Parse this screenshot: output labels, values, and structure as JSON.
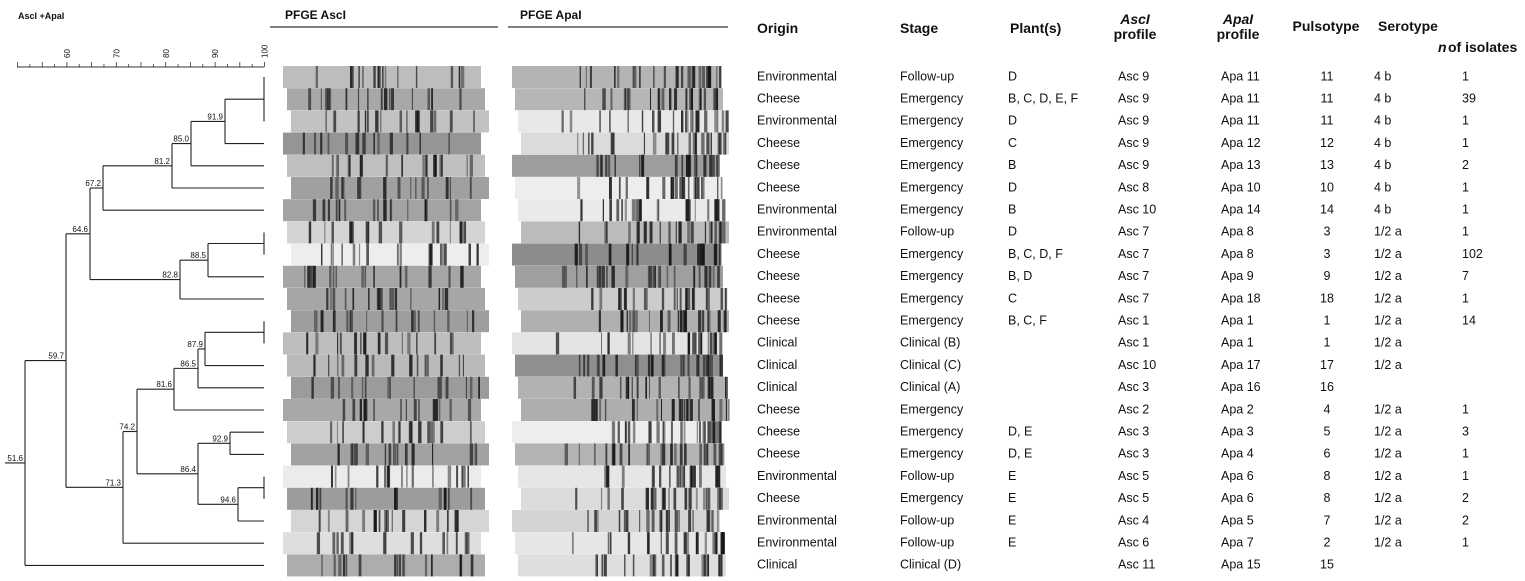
{
  "figure": {
    "title": "AscI +ApaI",
    "gel_headers": [
      "PFGE AscI",
      "PFGE ApaI"
    ],
    "scale": [
      "60",
      "70",
      "80",
      "90",
      "100"
    ],
    "nodes": [
      "91.9",
      "85.0",
      "81.2",
      "67.2",
      "64.6",
      "88.5",
      "82.8",
      "59.7",
      "87.9",
      "86.5",
      "81.6",
      "92.9",
      "94.6",
      "86.4",
      "74.2",
      "71.3",
      "51.6"
    ]
  },
  "table": {
    "headers": {
      "origin": "Origin",
      "stage": "Stage",
      "plants": "Plant(s)",
      "asc": [
        "AscI",
        "profile"
      ],
      "apa": [
        "ApaI",
        "profile"
      ],
      "pulsotype": "Pulsotype",
      "serotype": "Serotype",
      "isolates": [
        "n",
        "of isolates"
      ]
    },
    "rows": [
      [
        "Environmental",
        "Follow-up",
        "D",
        "Asc 9",
        "Apa 11",
        "11",
        "4 b",
        "1"
      ],
      [
        "Cheese",
        "Emergency",
        "B, C, D, E, F",
        "Asc 9",
        "Apa 11",
        "11",
        "4 b",
        "39"
      ],
      [
        "Environmental",
        "Emergency",
        "D",
        "Asc 9",
        "Apa 11",
        "11",
        "4 b",
        "1"
      ],
      [
        "Cheese",
        "Emergency",
        "C",
        "Asc 9",
        "Apa 12",
        "12",
        "4 b",
        "1"
      ],
      [
        "Cheese",
        "Emergency",
        "B",
        "Asc 9",
        "Apa 13",
        "13",
        "4 b",
        "2"
      ],
      [
        "Cheese",
        "Emergency",
        "D",
        "Asc 8",
        "Apa 10",
        "10",
        "4 b",
        "1"
      ],
      [
        "Environmental",
        "Emergency",
        "B",
        "Asc 10",
        "Apa 14",
        "14",
        "4 b",
        "1"
      ],
      [
        "Environmental",
        "Follow-up",
        "D",
        "Asc 7",
        "Apa 8",
        "3",
        "1/2 a",
        "1"
      ],
      [
        "Cheese",
        "Emergency",
        "B, C,  D,  F",
        "Asc 7",
        "Apa 8",
        "3",
        "1/2 a",
        "102"
      ],
      [
        "Cheese",
        "Emergency",
        "B, D",
        "Asc 7",
        "Apa 9",
        "9",
        "1/2 a",
        "7"
      ],
      [
        "Cheese",
        "Emergency",
        "C",
        "Asc 7",
        "Apa 18",
        "18",
        "1/2 a",
        "1"
      ],
      [
        "Cheese",
        "Emergency",
        "B, C, F",
        "Asc 1",
        "Apa 1",
        "1",
        "1/2 a",
        "14"
      ],
      [
        "Clinical",
        "Clinical (B)",
        null,
        "Asc 1",
        "Apa 1",
        "1",
        "1/2 a",
        null
      ],
      [
        "Clinical",
        "Clinical (C)",
        null,
        "Asc 10",
        "Apa 17",
        "17",
        "1/2 a",
        null
      ],
      [
        "Clinical",
        "Clinical (A)",
        null,
        "Asc 3",
        "Apa 16",
        "16",
        null,
        null
      ],
      [
        "Cheese",
        "Emergency",
        null,
        "Asc 2",
        "Apa 2",
        "4",
        "1/2 a",
        "1"
      ],
      [
        "Cheese",
        "Emergency",
        "D, E",
        "Asc 3",
        "Apa 3",
        "5",
        "1/2 a",
        "3"
      ],
      [
        "Cheese",
        "Emergency",
        "D, E",
        "Asc 3",
        "Apa 4",
        "6",
        "1/2 a",
        "1"
      ],
      [
        "Environmental",
        "Follow-up",
        "E",
        "Asc 5",
        "Apa 6",
        "8",
        "1/2 a",
        "1"
      ],
      [
        "Cheese",
        "Emergency",
        "E",
        "Asc 5",
        "Apa 6",
        "8",
        "1/2 a",
        "2"
      ],
      [
        "Environmental",
        "Follow-up",
        "E",
        "Asc 4",
        "Apa 5",
        "7",
        "1/2 a",
        "2"
      ],
      [
        "Environmental",
        "Follow-up",
        "E",
        "Asc 6",
        "Apa 7",
        "2",
        "1/2 a",
        "1"
      ],
      [
        "Clinical",
        "Clinical (D)",
        null,
        "Asc 11",
        "Apa 15",
        "15",
        null,
        null
      ]
    ]
  }
}
